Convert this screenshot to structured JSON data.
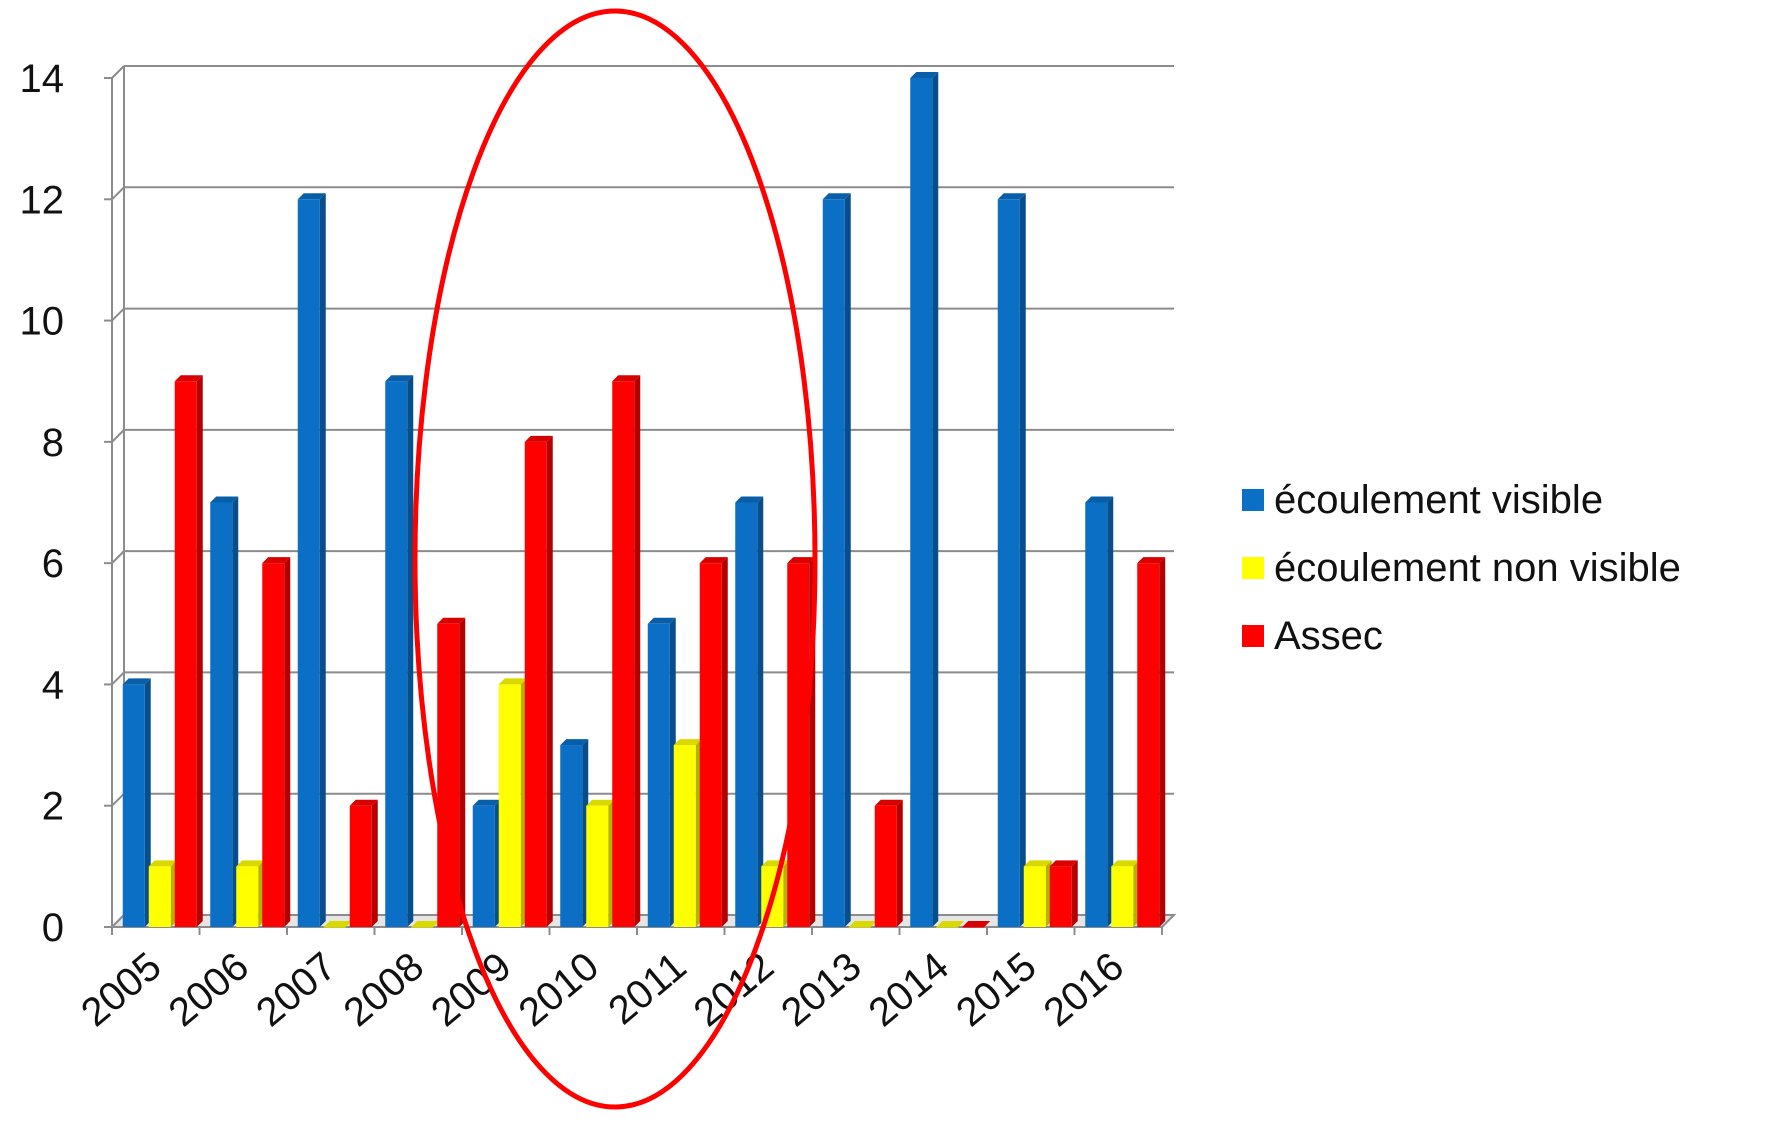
{
  "chart_data": {
    "type": "bar",
    "categories": [
      "2005",
      "2006",
      "2007",
      "2008",
      "2009",
      "2010",
      "2011",
      "2012",
      "2013",
      "2014",
      "2015",
      "2016"
    ],
    "series": [
      {
        "name": "écoulement visible",
        "color": "#0b6fc6",
        "values": [
          4,
          7,
          12,
          9,
          2,
          3,
          5,
          7,
          12,
          14,
          12,
          7
        ]
      },
      {
        "name": "écoulement non visible",
        "color": "#ffff00",
        "values": [
          1,
          1,
          0,
          0,
          4,
          2,
          3,
          1,
          0,
          0,
          1,
          1
        ]
      },
      {
        "name": "Assec",
        "color": "#ff0000",
        "values": [
          9,
          6,
          2,
          5,
          8,
          9,
          6,
          6,
          2,
          0,
          1,
          6
        ]
      }
    ],
    "ylim": [
      0,
      14
    ],
    "yticks": [
      0,
      2,
      4,
      6,
      8,
      10,
      12,
      14
    ],
    "grid": true,
    "legend_position": "right",
    "annotation": {
      "shape": "ellipse",
      "color": "#ff0000",
      "highlights": [
        "2009",
        "2010",
        "2011",
        "2012"
      ]
    }
  }
}
